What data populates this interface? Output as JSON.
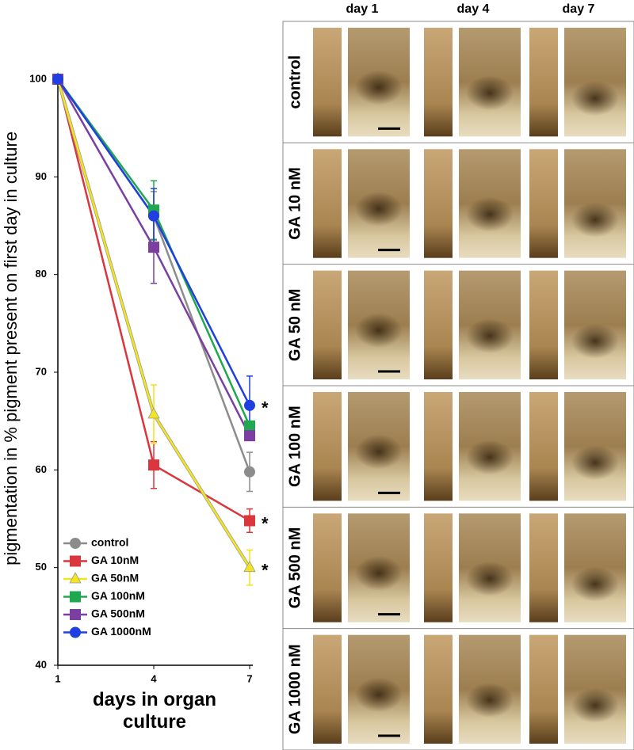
{
  "chart_data": {
    "type": "line",
    "ylabel": "pigmentation in % pigment present on first day in culture",
    "xlabel": "days in organ culture",
    "x": [
      1,
      4,
      7
    ],
    "xlim": [
      1,
      7
    ],
    "xticks": [
      1,
      4,
      7
    ],
    "ylim": [
      40,
      100
    ],
    "yticks": [
      40,
      50,
      60,
      70,
      80,
      90,
      100
    ],
    "legend": "bottom-left",
    "series": [
      {
        "name": "control",
        "color": "#8c8c8c",
        "marker": "circle",
        "values": [
          100,
          86,
          59.8
        ],
        "errors": [
          0,
          2.5,
          2
        ]
      },
      {
        "name": "GA 10nM",
        "color": "#d9363e",
        "marker": "square",
        "values": [
          100,
          60.5,
          54.8
        ],
        "errors": [
          0,
          2.4,
          1.2
        ],
        "annotation": "*"
      },
      {
        "name": "GA 50nM",
        "color": "#f2e41e",
        "marker": "triangle",
        "values": [
          100,
          65.7,
          50
        ],
        "errors": [
          0,
          3,
          1.8
        ],
        "annotation": "*"
      },
      {
        "name": "GA 100nM",
        "color": "#1fa84f",
        "marker": "square",
        "values": [
          100,
          86.6,
          64.5
        ],
        "errors": [
          0,
          3,
          0
        ]
      },
      {
        "name": "GA 500nM",
        "color": "#7a3fa0",
        "marker": "square",
        "values": [
          100,
          82.8,
          63.5
        ],
        "errors": [
          0,
          3.7,
          0
        ]
      },
      {
        "name": "GA 1000nM",
        "color": "#1f3fe0",
        "marker": "circle",
        "values": [
          100,
          86,
          66.6
        ],
        "errors": [
          0,
          2.8,
          3
        ],
        "annotation": "*"
      }
    ]
  },
  "micrographs": {
    "columns": [
      "day 1",
      "day 4",
      "day 7"
    ],
    "rows": [
      "control",
      "GA 10 nM",
      "GA 50 nM",
      "GA 100 nM",
      "GA 500 nM",
      "GA 1000 nM"
    ]
  }
}
